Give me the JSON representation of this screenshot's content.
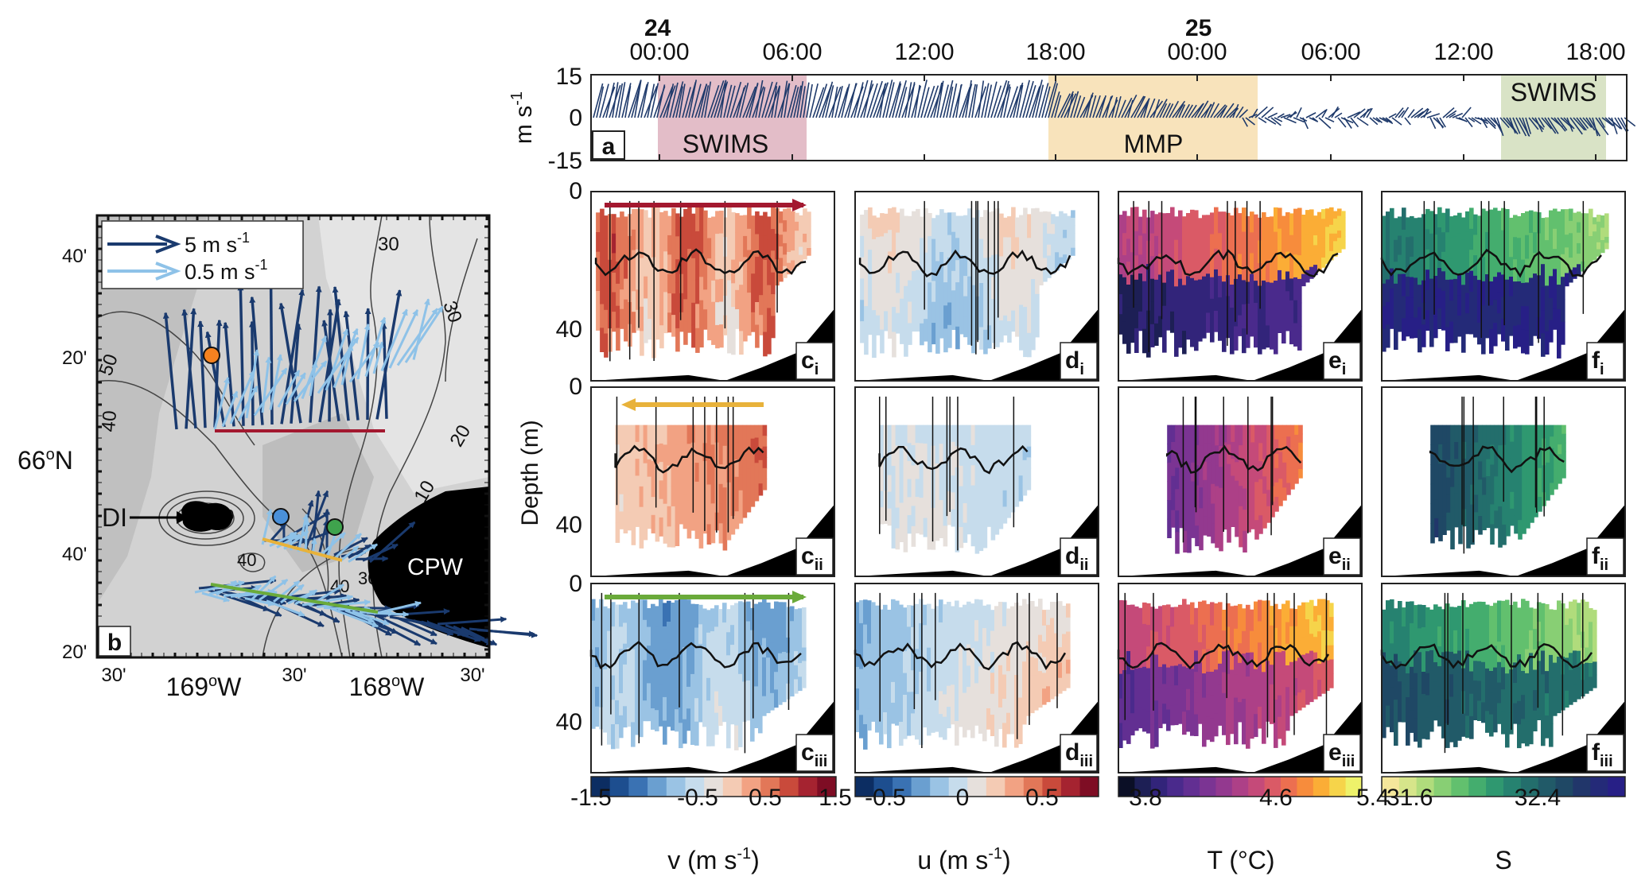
{
  "timeseries": {
    "day_labels": [
      "24",
      "25"
    ],
    "time_ticks": [
      "00:00",
      "06:00",
      "12:00",
      "18:00",
      "00:00",
      "06:00",
      "12:00",
      "18:00"
    ],
    "y_ticks": [
      "15",
      "0",
      "-15"
    ],
    "y_unit": "m s",
    "y_unit_exp": "-1",
    "panel_label": "a",
    "spans": [
      {
        "label": "SWIMS",
        "color": "#d9a7b6"
      },
      {
        "label": "MMP",
        "color": "#f6dcaa"
      },
      {
        "label": "SWIMS",
        "color": "#cfdcb8"
      }
    ],
    "vector_color": "#1f3a6b"
  },
  "map": {
    "panel_label": "b",
    "legend": [
      {
        "label": "5 m s",
        "exp": "-1",
        "color": "#1a3a6e"
      },
      {
        "label": "0.5 m s",
        "exp": "-1",
        "color": "#8ec2e8"
      }
    ],
    "lat_ticks": [
      "40'",
      "20'",
      "66°N",
      "40'",
      "20'"
    ],
    "lat_center_label": "66",
    "lat_center_suffix": "N",
    "lon_ticks": [
      "30'",
      "30'",
      "30'"
    ],
    "lon_major": [
      {
        "deg": "169",
        "hem": "W"
      },
      {
        "deg": "168",
        "hem": "W"
      }
    ],
    "contour_labels": [
      "30",
      "30",
      "50",
      "40",
      "20",
      "10",
      "40",
      "30",
      "20",
      "20",
      "40"
    ],
    "place_labels": {
      "island": "DI",
      "coast": "CPW"
    },
    "stations": [
      {
        "name": "orange",
        "color": "#f58220"
      },
      {
        "name": "blue",
        "color": "#4a90d9"
      },
      {
        "name": "green",
        "color": "#3fa34d"
      }
    ],
    "transect_colors": [
      "#a3182f",
      "#e8b23a",
      "#6aaa3a"
    ]
  },
  "sections": {
    "depth_ticks": [
      "0",
      "40",
      "0",
      "40",
      "0",
      "40"
    ],
    "depth_label": "Depth (m)",
    "columns": [
      "c",
      "d",
      "e",
      "f"
    ],
    "rows": [
      "i",
      "ii",
      "iii"
    ],
    "arrow_colors": [
      "#a3182f",
      "#e8b23a",
      "#6aaa3a"
    ]
  },
  "colorbars": [
    {
      "ticks": [
        "-1.5",
        "-0.5",
        "0.5",
        "1.5"
      ],
      "label": "v (m s",
      "exp": "-1",
      "label_tail": ")",
      "colors": [
        "#0c2d62",
        "#1d4e8f",
        "#3a72b3",
        "#6a9fd0",
        "#9ac3e4",
        "#c6dcec",
        "#e6e0dc",
        "#f4cbb4",
        "#f2a283",
        "#e27758",
        "#c94a3b",
        "#a52330",
        "#7e0d24"
      ]
    },
    {
      "ticks": [
        "-0.5",
        "0",
        "0.5"
      ],
      "label": "u (m s",
      "exp": "-1",
      "label_tail": ")",
      "colors": [
        "#0c2d62",
        "#1d4e8f",
        "#3a72b3",
        "#6a9fd0",
        "#9ac3e4",
        "#c6dcec",
        "#e6e0dc",
        "#f4cbb4",
        "#f2a283",
        "#e27758",
        "#c94a3b",
        "#a52330",
        "#7e0d24"
      ]
    },
    {
      "ticks": [
        "3.8",
        "4.6",
        "5.4"
      ],
      "label": "T (°C)",
      "exp": "",
      "label_tail": "",
      "colors": [
        "#0b0f26",
        "#1d1f55",
        "#32247a",
        "#4a2a8c",
        "#622f92",
        "#7b3493",
        "#93398f",
        "#ad4087",
        "#c54a79",
        "#da5a66",
        "#ec6f50",
        "#f78c3c",
        "#fbad36",
        "#f6d44a",
        "#eef26a"
      ]
    },
    {
      "ticks": [
        "31.6",
        "32.4"
      ],
      "label": "S",
      "exp": "",
      "label_tail": "",
      "colors": [
        "#f5e79b",
        "#d6e58a",
        "#b0dc7c",
        "#88cf74",
        "#62c06e",
        "#44ad6e",
        "#2f9870",
        "#268270",
        "#236e6c",
        "#215a68",
        "#1f4865",
        "#21366a",
        "#242a78",
        "#271f86"
      ]
    }
  ]
}
